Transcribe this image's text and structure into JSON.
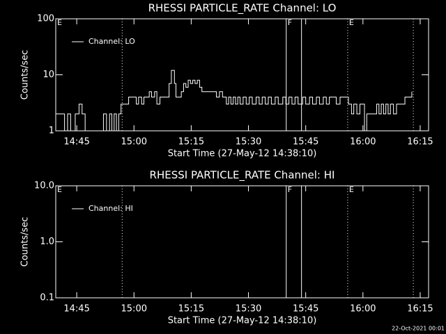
{
  "chart_data": [
    {
      "type": "line",
      "title": "RHESSI PARTICLE_RATE Channel: LO",
      "xlabel": "Start Time (27-May-12 14:38:10)",
      "ylabel": "Counts/sec",
      "log_y": true,
      "step": true,
      "ylim": [
        1,
        100
      ],
      "yticks": [
        1,
        10,
        100
      ],
      "xlim": [
        879.5,
        977.2
      ],
      "xticks": [
        {
          "value": 885,
          "label": "14:45"
        },
        {
          "value": 900,
          "label": "15:00"
        },
        {
          "value": 915,
          "label": "15:15"
        },
        {
          "value": 930,
          "label": "15:30"
        },
        {
          "value": 945,
          "label": "15:45"
        },
        {
          "value": 960,
          "label": "16:00"
        },
        {
          "value": 975,
          "label": "16:15"
        }
      ],
      "markers": [
        {
          "x": 879.5,
          "style": "dotted",
          "label": "E"
        },
        {
          "x": 896.9,
          "style": "dotted"
        },
        {
          "x": 939.9,
          "style": "solid",
          "label": "F"
        },
        {
          "x": 943.9,
          "style": "solid"
        },
        {
          "x": 956.0,
          "style": "dotted",
          "label": "E"
        },
        {
          "x": 973.2,
          "style": "dotted"
        }
      ],
      "series": [
        {
          "name": "Channel: LO",
          "color": "#ffffff",
          "x": [
            879.5,
            881.8,
            882.6,
            883.4,
            884.6,
            885.6,
            886.4,
            887.2,
            892.0,
            892.8,
            893.6,
            894.2,
            894.8,
            895.4,
            896.0,
            896.6,
            898.0,
            898.6,
            900.6,
            901.2,
            902.0,
            902.6,
            904.0,
            904.6,
            905.4,
            906.0,
            906.8,
            908.4,
            909.2,
            909.8,
            910.6,
            911.0,
            912.4,
            913.0,
            913.6,
            914.2,
            914.8,
            915.4,
            916.0,
            916.6,
            917.2,
            917.8,
            921.0,
            921.6,
            922.4,
            923.2,
            924.2,
            924.8,
            925.4,
            926.0,
            926.6,
            927.2,
            927.8,
            928.6,
            929.4,
            930.2,
            931.0,
            932.0,
            932.8,
            933.6,
            934.4,
            935.2,
            936.0,
            937.0,
            937.8,
            939.0,
            939.8,
            940.6,
            941.4,
            942.2,
            943.0,
            944.2,
            945.0,
            946.0,
            946.8,
            947.8,
            948.6,
            949.6,
            950.4,
            951.2,
            952.0,
            953.0,
            954.0,
            955.6,
            956.2,
            957.0,
            957.6,
            958.4,
            959.2,
            960.4,
            961.0,
            963.6,
            964.2,
            964.8,
            965.4,
            966.0,
            966.6,
            967.2,
            968.0,
            968.8,
            970.2,
            971.0,
            972.0,
            972.8
          ],
          "values": [
            2,
            1,
            2,
            1,
            2,
            3,
            2,
            1,
            2,
            1,
            2,
            1,
            2,
            1,
            2,
            3,
            3,
            4,
            3,
            4,
            3,
            4,
            5,
            4,
            5,
            3,
            4,
            4,
            7,
            12,
            7,
            4,
            5,
            7,
            6,
            8,
            7,
            8,
            7,
            8,
            6,
            5,
            5,
            4,
            5,
            4,
            3,
            4,
            3,
            4,
            3,
            4,
            3,
            4,
            3,
            4,
            3,
            4,
            3,
            4,
            3,
            4,
            3,
            4,
            3,
            4,
            3,
            4,
            3,
            4,
            3,
            4,
            3,
            4,
            3,
            4,
            3,
            4,
            3,
            4,
            4,
            3,
            4,
            4,
            3,
            2,
            3,
            2,
            3,
            1,
            2,
            3,
            2,
            3,
            2,
            3,
            2,
            3,
            2,
            3,
            3,
            4,
            4,
            5
          ]
        }
      ]
    },
    {
      "type": "line",
      "title": "RHESSI PARTICLE_RATE Channel: HI",
      "xlabel": "Start Time (27-May-12 14:38:10)",
      "ylabel": "Counts/sec",
      "log_y": true,
      "step": true,
      "ylim": [
        0.1,
        10
      ],
      "yticks": [
        0.1,
        {
          "value": 1,
          "label": "1.0"
        },
        {
          "value": 10,
          "label": "10.0"
        }
      ],
      "xlim": [
        879.5,
        977.2
      ],
      "xticks": [
        {
          "value": 885,
          "label": "14:45"
        },
        {
          "value": 900,
          "label": "15:00"
        },
        {
          "value": 915,
          "label": "15:15"
        },
        {
          "value": 930,
          "label": "15:30"
        },
        {
          "value": 945,
          "label": "15:45"
        },
        {
          "value": 960,
          "label": "16:00"
        },
        {
          "value": 975,
          "label": "16:15"
        }
      ],
      "markers": [
        {
          "x": 879.5,
          "style": "dotted",
          "label": "E"
        },
        {
          "x": 896.9,
          "style": "dotted"
        },
        {
          "x": 939.9,
          "style": "solid",
          "label": "F"
        },
        {
          "x": 943.9,
          "style": "solid"
        },
        {
          "x": 956.0,
          "style": "dotted",
          "label": "E"
        },
        {
          "x": 973.2,
          "style": "dotted"
        }
      ],
      "series": [
        {
          "name": "Channel: HI",
          "color": "#ffffff",
          "x": [],
          "values": []
        }
      ]
    }
  ],
  "footer": "22-Oct-2021 00:01"
}
